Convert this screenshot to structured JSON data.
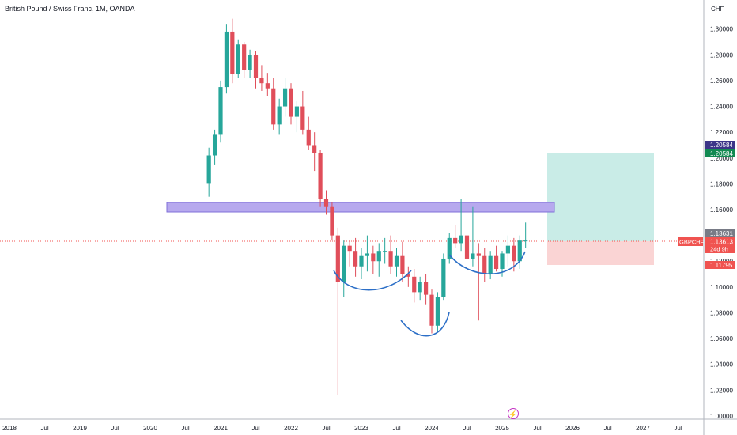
{
  "header": {
    "title": "British Pound / Swiss Franc, 1M, OANDA",
    "currency": "CHF"
  },
  "price_axis": {
    "labels": [
      "1.30000",
      "1.28000",
      "1.26000",
      "1.24000",
      "1.22000",
      "1.20000",
      "1.18000",
      "1.16000",
      "1.14000",
      "1.12000",
      "1.10000",
      "1.08000",
      "1.06000",
      "1.04000",
      "1.02000",
      "1.00000"
    ]
  },
  "time_axis": {
    "labels": [
      "2018",
      "Jul",
      "2019",
      "Jul",
      "2020",
      "Jul",
      "2021",
      "Jul",
      "2022",
      "Jul",
      "2023",
      "Jul",
      "2024",
      "Jul",
      "2025",
      "Jul",
      "2026",
      "Jul",
      "2027",
      "Jul"
    ]
  },
  "badges": {
    "resistance_value": "1.20584",
    "resistance_value_2": "1.20584",
    "last_price": "1.13631",
    "symbol": "GBPCHF",
    "current_price": "1.13613",
    "countdown": "24d 9h",
    "stop_value": "1.11795"
  },
  "colors": {
    "up": "#26a69a",
    "down": "#e04e5a",
    "resistance_line": "#5b4fc7",
    "zone": "#b7a9ee",
    "target": "#c9ece7",
    "stop": "#fad4d4",
    "pattern_curve": "#2c6fc7",
    "symbol_badge": "#f05350",
    "resistance_badge": "#3c3588",
    "resistance_badge_2": "#138a52"
  },
  "chart_data": {
    "type": "candlestick",
    "title": "British Pound / Swiss Franc, 1M, OANDA",
    "ylabel": "CHF",
    "ylim": [
      0.9975,
      1.3225
    ],
    "x": [
      "2020-11",
      "2020-12",
      "2021-01",
      "2021-02",
      "2021-03",
      "2021-04",
      "2021-05",
      "2021-06",
      "2021-07",
      "2021-08",
      "2021-09",
      "2021-10",
      "2021-11",
      "2021-12",
      "2022-01",
      "2022-02",
      "2022-03",
      "2022-04",
      "2022-05",
      "2022-06",
      "2022-07",
      "2022-08",
      "2022-09",
      "2022-10",
      "2022-11",
      "2022-12",
      "2023-01",
      "2023-02",
      "2023-03",
      "2023-04",
      "2023-05",
      "2023-06",
      "2023-07",
      "2023-08",
      "2023-09",
      "2023-10",
      "2023-11",
      "2023-12",
      "2024-01",
      "2024-02",
      "2024-03",
      "2024-04",
      "2024-05",
      "2024-06",
      "2024-07",
      "2024-08",
      "2024-09",
      "2024-10",
      "2024-11",
      "2024-12",
      "2025-01",
      "2025-02",
      "2025-03",
      "2025-04",
      "2025-05"
    ],
    "series": [
      {
        "open": 1.18,
        "high": 1.208,
        "low": 1.17,
        "close": 1.202
      },
      {
        "open": 1.202,
        "high": 1.222,
        "low": 1.195,
        "close": 1.218
      },
      {
        "open": 1.218,
        "high": 1.26,
        "low": 1.212,
        "close": 1.255
      },
      {
        "open": 1.255,
        "high": 1.304,
        "low": 1.25,
        "close": 1.298
      },
      {
        "open": 1.298,
        "high": 1.308,
        "low": 1.258,
        "close": 1.265
      },
      {
        "open": 1.265,
        "high": 1.292,
        "low": 1.262,
        "close": 1.288
      },
      {
        "open": 1.288,
        "high": 1.29,
        "low": 1.262,
        "close": 1.268
      },
      {
        "open": 1.268,
        "high": 1.284,
        "low": 1.262,
        "close": 1.28
      },
      {
        "open": 1.28,
        "high": 1.283,
        "low": 1.254,
        "close": 1.262
      },
      {
        "open": 1.262,
        "high": 1.272,
        "low": 1.252,
        "close": 1.258
      },
      {
        "open": 1.258,
        "high": 1.266,
        "low": 1.248,
        "close": 1.254
      },
      {
        "open": 1.254,
        "high": 1.262,
        "low": 1.222,
        "close": 1.226
      },
      {
        "open": 1.226,
        "high": 1.246,
        "low": 1.218,
        "close": 1.24
      },
      {
        "open": 1.24,
        "high": 1.262,
        "low": 1.232,
        "close": 1.254
      },
      {
        "open": 1.254,
        "high": 1.258,
        "low": 1.226,
        "close": 1.232
      },
      {
        "open": 1.232,
        "high": 1.244,
        "low": 1.22,
        "close": 1.24
      },
      {
        "open": 1.24,
        "high": 1.252,
        "low": 1.218,
        "close": 1.222
      },
      {
        "open": 1.222,
        "high": 1.232,
        "low": 1.206,
        "close": 1.21
      },
      {
        "open": 1.21,
        "high": 1.22,
        "low": 1.19,
        "close": 1.204
      },
      {
        "open": 1.204,
        "high": 1.206,
        "low": 1.162,
        "close": 1.168
      },
      {
        "open": 1.168,
        "high": 1.175,
        "low": 1.156,
        "close": 1.162
      },
      {
        "open": 1.162,
        "high": 1.166,
        "low": 1.136,
        "close": 1.14
      },
      {
        "open": 1.14,
        "high": 1.146,
        "low": 1.016,
        "close": 1.104
      },
      {
        "open": 1.104,
        "high": 1.136,
        "low": 1.092,
        "close": 1.132
      },
      {
        "open": 1.132,
        "high": 1.136,
        "low": 1.116,
        "close": 1.128
      },
      {
        "open": 1.128,
        "high": 1.138,
        "low": 1.108,
        "close": 1.116
      },
      {
        "open": 1.116,
        "high": 1.13,
        "low": 1.106,
        "close": 1.124
      },
      {
        "open": 1.124,
        "high": 1.14,
        "low": 1.112,
        "close": 1.126
      },
      {
        "open": 1.126,
        "high": 1.132,
        "low": 1.11,
        "close": 1.12
      },
      {
        "open": 1.12,
        "high": 1.134,
        "low": 1.108,
        "close": 1.128
      },
      {
        "open": 1.128,
        "high": 1.138,
        "low": 1.118,
        "close": 1.128
      },
      {
        "open": 1.128,
        "high": 1.14,
        "low": 1.11,
        "close": 1.116
      },
      {
        "open": 1.116,
        "high": 1.13,
        "low": 1.108,
        "close": 1.124
      },
      {
        "open": 1.124,
        "high": 1.135,
        "low": 1.104,
        "close": 1.11
      },
      {
        "open": 1.11,
        "high": 1.116,
        "low": 1.1,
        "close": 1.108
      },
      {
        "open": 1.108,
        "high": 1.114,
        "low": 1.088,
        "close": 1.096
      },
      {
        "open": 1.096,
        "high": 1.108,
        "low": 1.09,
        "close": 1.104
      },
      {
        "open": 1.104,
        "high": 1.11,
        "low": 1.086,
        "close": 1.094
      },
      {
        "open": 1.094,
        "high": 1.098,
        "low": 1.064,
        "close": 1.07
      },
      {
        "open": 1.07,
        "high": 1.096,
        "low": 1.066,
        "close": 1.092
      },
      {
        "open": 1.092,
        "high": 1.126,
        "low": 1.09,
        "close": 1.122
      },
      {
        "open": 1.122,
        "high": 1.142,
        "low": 1.118,
        "close": 1.138
      },
      {
        "open": 1.138,
        "high": 1.148,
        "low": 1.13,
        "close": 1.134
      },
      {
        "open": 1.134,
        "high": 1.168,
        "low": 1.128,
        "close": 1.14
      },
      {
        "open": 1.14,
        "high": 1.144,
        "low": 1.118,
        "close": 1.122
      },
      {
        "open": 1.122,
        "high": 1.162,
        "low": 1.116,
        "close": 1.126
      },
      {
        "open": 1.126,
        "high": 1.134,
        "low": 1.074,
        "close": 1.124
      },
      {
        "open": 1.124,
        "high": 1.13,
        "low": 1.104,
        "close": 1.11
      },
      {
        "open": 1.11,
        "high": 1.128,
        "low": 1.106,
        "close": 1.124
      },
      {
        "open": 1.124,
        "high": 1.132,
        "low": 1.112,
        "close": 1.114
      },
      {
        "open": 1.114,
        "high": 1.128,
        "low": 1.108,
        "close": 1.126
      },
      {
        "open": 1.126,
        "high": 1.14,
        "low": 1.116,
        "close": 1.132
      },
      {
        "open": 1.132,
        "high": 1.138,
        "low": 1.112,
        "close": 1.12
      },
      {
        "open": 1.12,
        "high": 1.14,
        "low": 1.114,
        "close": 1.136
      },
      {
        "open": 1.136,
        "high": 1.15,
        "low": 1.13,
        "close": 1.136
      }
    ],
    "levels": {
      "resistance": 1.20584,
      "zone_top": 1.1665,
      "zone_bottom": 1.1595,
      "entry": 1.13631,
      "stop": 1.11795,
      "target": 1.20584
    }
  }
}
